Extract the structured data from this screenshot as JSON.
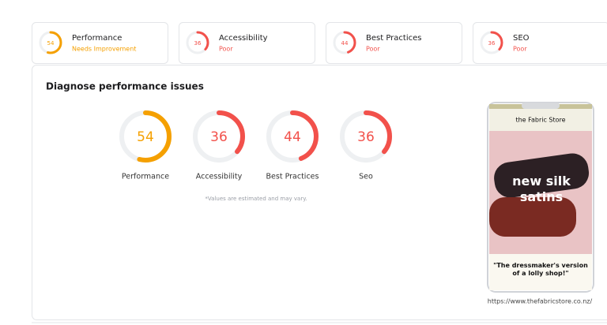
{
  "cards": [
    {
      "label": "Performance",
      "score": 54,
      "status": "Needs Improvement",
      "color": "#f5a000"
    },
    {
      "label": "Accessibility",
      "score": 36,
      "status": "Poor",
      "color": "#f2514b"
    },
    {
      "label": "Best Practices",
      "score": 44,
      "status": "Poor",
      "color": "#f2514b"
    },
    {
      "label": "SEO",
      "score": 36,
      "status": "Poor",
      "color": "#f2514b"
    }
  ],
  "panel": {
    "title": "Diagnose performance issues",
    "gauges": [
      {
        "label": "Performance",
        "score": 54,
        "color": "#f5a000"
      },
      {
        "label": "Accessibility",
        "score": 36,
        "color": "#f2514b"
      },
      {
        "label": "Best Practices",
        "score": 44,
        "color": "#f2514b"
      },
      {
        "label": "Seo",
        "score": 36,
        "color": "#f2514b"
      }
    ],
    "note": "*Values are estimated and may vary.",
    "preview": {
      "brand": "the Fabric Store",
      "headline": "new silk satins",
      "quote": "\"The dressmaker's version of a lolly shop!\"",
      "url": "https://www.thefabricstore.co.nz/"
    }
  }
}
